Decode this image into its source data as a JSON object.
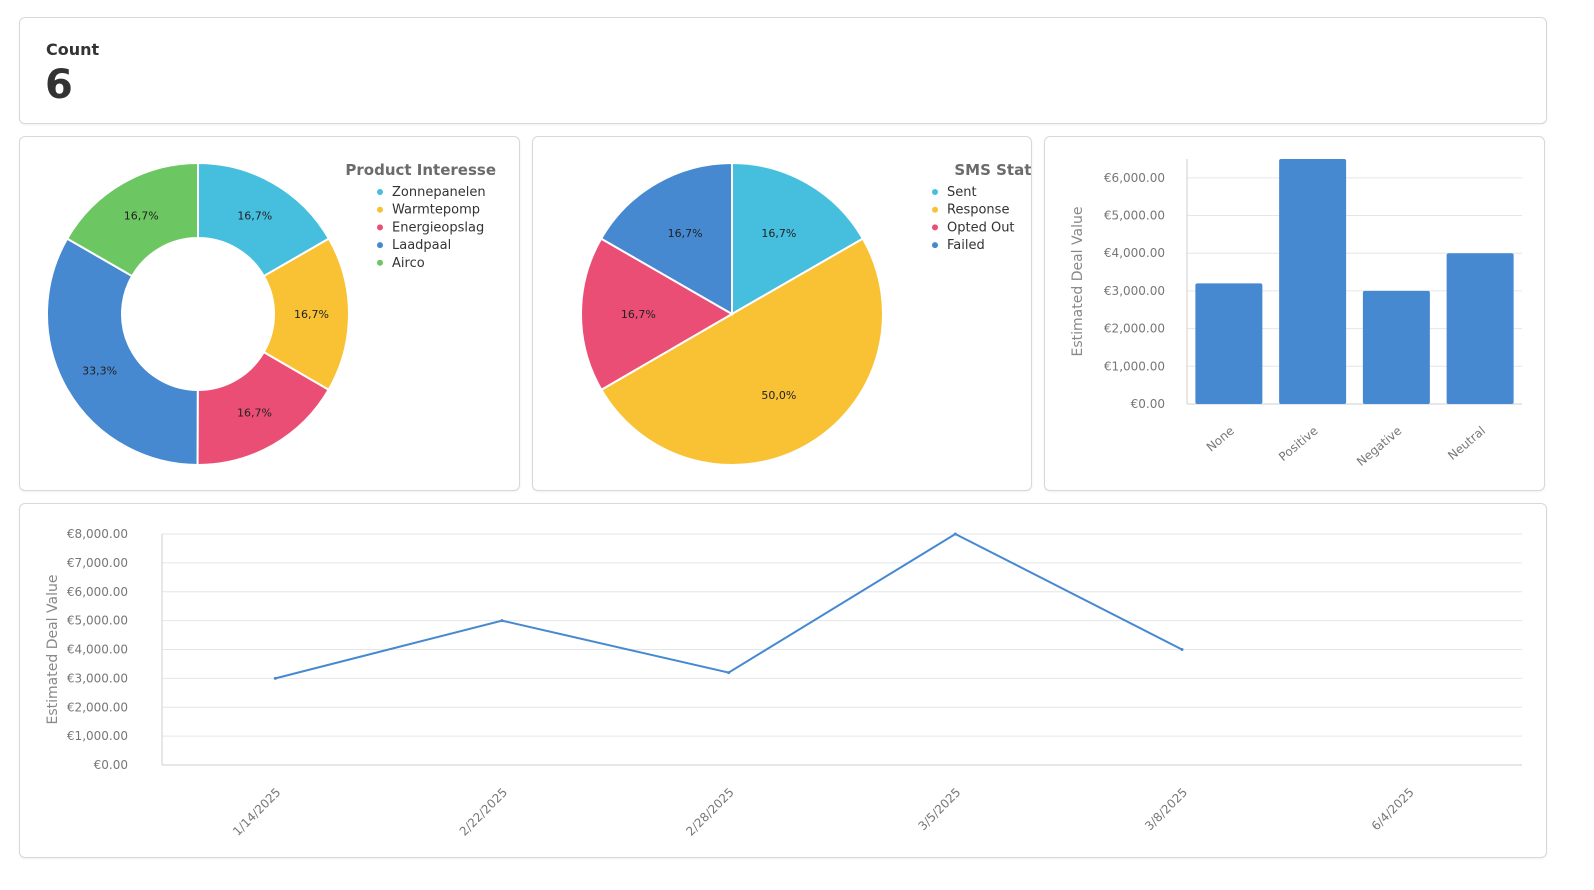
{
  "count_card": {
    "label": "Count",
    "value": "6"
  },
  "chart_data": [
    {
      "type": "pie",
      "style": "donut",
      "title": "Product Interesse",
      "labels": [
        "Zonnepanelen",
        "Warmtepomp",
        "Energieopslag",
        "Laadpaal",
        "Airco"
      ],
      "values": [
        16.7,
        16.7,
        16.7,
        33.3,
        16.7
      ],
      "value_labels": [
        "16,7%",
        "16,7%",
        "16,7%",
        "33,3%",
        "16,7%"
      ],
      "colors": [
        "#46bfdf",
        "#f9c234",
        "#eb4e75",
        "#4689d1",
        "#6cc762"
      ],
      "legend_position": "right"
    },
    {
      "type": "pie",
      "title": "SMS Status",
      "labels": [
        "Sent",
        "Response",
        "Opted Out",
        "Failed"
      ],
      "values": [
        16.7,
        50.0,
        16.7,
        16.7
      ],
      "value_labels": [
        "16,7%",
        "50,0%",
        "16,7%",
        "16,7%"
      ],
      "colors": [
        "#46bfdf",
        "#f9c234",
        "#eb4e75",
        "#4689d1"
      ],
      "legend_position": "right"
    },
    {
      "type": "bar",
      "categories": [
        "None",
        "Positive",
        "Negative",
        "Neutral"
      ],
      "values": [
        3200,
        6500,
        3000,
        4000
      ],
      "ylabel": "Estimated Deal Value",
      "ylim": [
        0,
        6500
      ],
      "yticks": [
        0,
        1000,
        2000,
        3000,
        4000,
        5000,
        6000
      ],
      "ytick_labels": [
        "€0.00",
        "€1,000.00",
        "€2,000.00",
        "€3,000.00",
        "€4,000.00",
        "€5,000.00",
        "€6,000.00"
      ],
      "color": "#4689d1",
      "grid": true
    },
    {
      "type": "line",
      "x": [
        "1/14/2025",
        "2/22/2025",
        "2/28/2025",
        "3/5/2025",
        "3/8/2025",
        "6/4/2025"
      ],
      "values": [
        3000,
        5000,
        3200,
        8000,
        4000,
        null
      ],
      "ylabel": "Estimated Deal Value",
      "ylim": [
        0,
        8000
      ],
      "yticks": [
        0,
        1000,
        2000,
        3000,
        4000,
        5000,
        6000,
        7000,
        8000
      ],
      "ytick_labels": [
        "€0.00",
        "€1,000.00",
        "€2,000.00",
        "€3,000.00",
        "€4,000.00",
        "€5,000.00",
        "€6,000.00",
        "€7,000.00",
        "€8,000.00"
      ],
      "color": "#4689d1",
      "grid": true
    }
  ]
}
